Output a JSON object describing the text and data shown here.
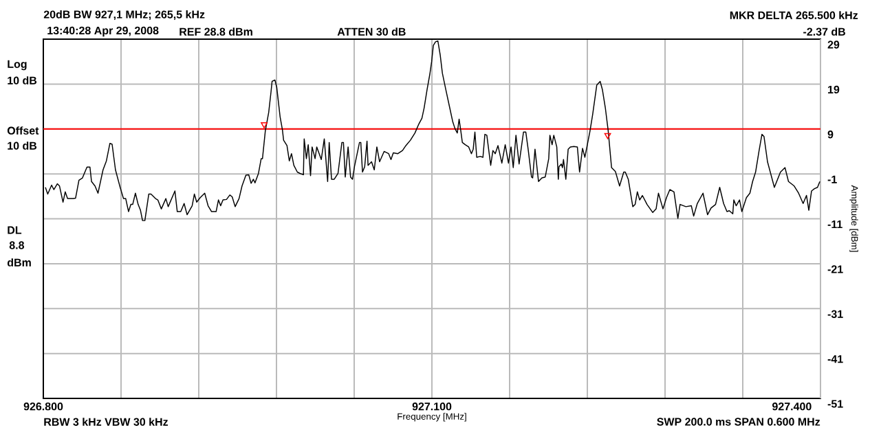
{
  "chart_data": {
    "type": "line",
    "title": "20dB BW 927,1 MHz; 265,5 kHz",
    "xlabel": "Frequency [MHz]",
    "ylabel": "Amplitude [dBm]",
    "annotations": [
      "13:40:28 Apr 29, 2008",
      "REF 28.8 dBm",
      "ATTEN 30 dB",
      "MKR DELTA 265.500 kHz",
      "-2.37 dB",
      "Log",
      "10 dB",
      "Offset",
      "10 dB",
      "DL",
      "8.8",
      "dBm",
      "RBW 3 kHz  VBW 30 kHz",
      "SWP 200.0 ms  SPAN 0.600 MHz"
    ],
    "xlim": [
      926.8,
      927.4
    ],
    "ylim": [
      -51.2,
      28.8
    ],
    "xticks": [
      {
        "value": 926.8,
        "label": "926.800"
      },
      {
        "value": 926.86,
        "label": null
      },
      {
        "value": 926.92,
        "label": null
      },
      {
        "value": 926.98,
        "label": null
      },
      {
        "value": 927.04,
        "label": null
      },
      {
        "value": 927.1,
        "label": "927.100"
      },
      {
        "value": 927.16,
        "label": null
      },
      {
        "value": 927.22,
        "label": null
      },
      {
        "value": 927.28,
        "label": null
      },
      {
        "value": 927.34,
        "label": null
      },
      {
        "value": 927.4,
        "label": "927.400"
      }
    ],
    "yticks": [
      {
        "value": 28.8,
        "label": "29"
      },
      {
        "value": 18.8,
        "label": "19"
      },
      {
        "value": 8.8,
        "label": "9"
      },
      {
        "value": -1.2,
        "label": "-1"
      },
      {
        "value": -11.2,
        "label": "-11"
      },
      {
        "value": -21.2,
        "label": "-21"
      },
      {
        "value": -31.2,
        "label": "-31"
      },
      {
        "value": -41.2,
        "label": "-41"
      },
      {
        "value": -51.2,
        "label": "-51"
      }
    ],
    "grid": true,
    "ref_lines": [
      {
        "axis": "y",
        "value": 8.8,
        "color": "#ff0000"
      }
    ],
    "series": [
      {
        "color": "#000000",
        "x": [
          926.8016,
          926.8034,
          926.8064,
          926.8081,
          926.8108,
          926.8125,
          926.8152,
          926.8169,
          926.8187,
          926.8231,
          926.8249,
          926.8275,
          926.8302,
          926.8337,
          926.836,
          926.8372,
          926.8399,
          926.8422,
          926.8461,
          926.8487,
          926.8514,
          926.8531,
          926.8557,
          926.8593,
          926.8619,
          926.8636,
          926.8658,
          926.8676,
          926.869,
          926.8711,
          926.8732,
          926.875,
          926.8766,
          926.8784,
          926.8814,
          926.8831,
          926.8866,
          926.8884,
          926.8911,
          926.8946,
          926.8964,
          926.9016,
          926.9034,
          926.9061,
          926.9087,
          926.911,
          926.9149,
          926.9166,
          926.9184,
          926.9211,
          926.9246,
          926.9272,
          926.9299,
          926.9334,
          926.9352,
          926.9369,
          926.9387,
          926.9414,
          926.944,
          926.9458,
          926.9481,
          926.9511,
          926.9534,
          926.9564,
          926.9586,
          926.9604,
          926.9622,
          926.9634,
          926.9661,
          926.9682,
          926.9692,
          926.9714,
          926.974,
          926.9758,
          926.9766,
          926.9788,
          926.9802,
          926.9828,
          926.9846,
          926.9855,
          926.9881,
          926.9899,
          926.9916,
          926.9934,
          926.9961,
          926.9982,
          927.0008,
          927.0014,
          927.0031,
          927.0045,
          927.0063,
          927.0075,
          927.0098,
          927.0111,
          927.0146,
          927.0169,
          927.0195,
          927.0207,
          927.0225,
          927.0246,
          927.0275,
          927.0305,
          927.0317,
          927.0331,
          927.0353,
          927.0372,
          927.0387,
          927.0402,
          927.0441,
          927.0451,
          927.0464,
          927.0481,
          927.0499,
          927.0507,
          927.0534,
          927.0555,
          927.0575,
          927.0596,
          927.0631,
          927.0666,
          927.0684,
          927.0702,
          927.0737,
          927.0773,
          927.0799,
          927.0834,
          927.0869,
          927.0899,
          927.0923,
          927.094,
          927.0963,
          927.0984,
          927.0998,
          927.1011,
          927.1028,
          927.1046,
          927.1064,
          927.1081,
          927.1107,
          927.1134,
          927.1161,
          927.1178,
          927.1196,
          927.121,
          927.1223,
          927.1235,
          927.1257,
          927.1284,
          927.1305,
          927.1319,
          927.1332,
          927.1346,
          927.1373,
          927.1394,
          927.1409,
          927.1424,
          927.1454,
          927.1471,
          927.1489,
          927.151,
          927.154,
          927.1566,
          927.1591,
          927.1611,
          927.1628,
          927.1649,
          927.1673,
          927.1707,
          927.1725,
          927.1743,
          927.1769,
          927.1778,
          927.1796,
          927.1823,
          927.1849,
          927.1875,
          927.1902,
          927.1911,
          927.1928,
          927.1941,
          927.1964,
          927.1976,
          927.1981,
          927.1999,
          927.2008,
          927.2016,
          927.2034,
          927.2052,
          927.2069,
          927.2096,
          927.2123,
          927.214,
          927.2163,
          927.2181,
          927.2219,
          927.2241,
          927.2273,
          927.2299,
          927.2316,
          927.2339,
          927.2361,
          927.2387,
          927.2417,
          927.2449,
          927.2481,
          927.2493,
          927.2516,
          927.2551,
          927.2569,
          927.2586,
          927.2604,
          927.2625,
          927.2661,
          927.2705,
          927.2731,
          927.2749,
          927.2784,
          927.2811,
          927.2837,
          927.2869,
          927.2899,
          927.2916,
          927.2961,
          927.3003,
          927.3021,
          927.3049,
          927.3093,
          927.3128,
          927.3155,
          927.319,
          927.3222,
          927.3252,
          927.3278,
          927.3296,
          927.3323,
          927.3331,
          927.3349,
          927.3375,
          927.3393,
          927.3428,
          927.3455,
          927.3476,
          927.3499,
          927.3525,
          927.3548,
          927.3564,
          927.3591,
          927.3644,
          927.3691,
          927.3726,
          927.3753,
          927.3797,
          927.3831,
          927.3866,
          927.3892,
          927.391,
          927.3931,
          927.3954,
          927.3977,
          927.3995
        ],
        "values": [
          -4.2,
          -5.7,
          -3.7,
          -4.7,
          -3.4,
          -3.9,
          -7.5,
          -5.2,
          -6.7,
          -6.7,
          -6.6,
          -2.6,
          -2.1,
          0.3,
          0.3,
          -2.9,
          -3.9,
          -5.5,
          -0.3,
          1.7,
          5.6,
          5.4,
          -0.3,
          -4.2,
          -6.7,
          -6.7,
          -9.6,
          -8.0,
          -8.0,
          -5.5,
          -8.0,
          -9.3,
          -11.6,
          -11.6,
          -5.7,
          -5.7,
          -6.7,
          -7.0,
          -9.0,
          -6.7,
          -8.5,
          -5.0,
          -9.6,
          -9.6,
          -7.8,
          -10.3,
          -8.3,
          -5.7,
          -7.5,
          -6.5,
          -5.5,
          -8.3,
          -9.6,
          -9.6,
          -7.0,
          -8.3,
          -7.0,
          -6.9,
          -5.9,
          -6.3,
          -8.5,
          -6.7,
          -3.9,
          -1.5,
          -1.4,
          -3.3,
          -2.4,
          -3.2,
          -1.1,
          2.2,
          2.2,
          8.4,
          12.5,
          17.1,
          19.4,
          19.7,
          18.1,
          11.5,
          8.6,
          6.3,
          5.1,
          1.7,
          3.3,
          0.7,
          -0.8,
          -1.1,
          -1.4,
          6.6,
          2.2,
          5.3,
          -1.6,
          4.8,
          2.2,
          4.8,
          2.0,
          6.6,
          -2.9,
          5.8,
          -2.4,
          -2.4,
          -1.1,
          5.8,
          5.8,
          -1.9,
          4.8,
          -1.9,
          -2.4,
          0.4,
          5.8,
          5.8,
          -0.8,
          0.4,
          6.1,
          0.7,
          1.5,
          -0.3,
          4.8,
          1.5,
          3.8,
          3.3,
          2.0,
          3.5,
          3.3,
          4.0,
          5.1,
          6.3,
          7.9,
          9.9,
          11.2,
          13.5,
          17.6,
          21.0,
          23.8,
          27.4,
          28.2,
          28.4,
          25.3,
          21.2,
          17.6,
          14.0,
          10.4,
          8.9,
          7.9,
          11.0,
          8.4,
          5.8,
          5.3,
          4.8,
          3.3,
          4.3,
          8.1,
          2.5,
          2.7,
          2.5,
          7.6,
          7.4,
          0.7,
          4.0,
          3.3,
          5.1,
          1.2,
          5.3,
          1.2,
          4.8,
          0.2,
          7.4,
          1.0,
          8.1,
          8.1,
          4.3,
          -1.9,
          -2.1,
          4.3,
          -2.9,
          -2.1,
          -1.9,
          2.2,
          7.4,
          5.3,
          7.4,
          4.8,
          -2.4,
          0.4,
          1.0,
          0.2,
          2.0,
          -2.4,
          4.3,
          4.8,
          4.9,
          4.8,
          -0.8,
          4.5,
          2.5,
          8.1,
          12.0,
          18.6,
          19.4,
          17.6,
          13.5,
          8.4,
          0.2,
          -0.7,
          -3.9,
          -0.8,
          -0.8,
          -2.4,
          -8.5,
          -8.0,
          -5.2,
          -7.0,
          -6.0,
          -8.0,
          -9.8,
          -9.0,
          -5.5,
          -9.0,
          -6.5,
          -4.7,
          -5.2,
          -11.1,
          -8.0,
          -8.5,
          -8.3,
          -10.6,
          -7.8,
          -5.5,
          -10.3,
          -8.8,
          -8.0,
          -4.2,
          -7.8,
          -9.6,
          -9.4,
          -10.1,
          -7.0,
          -8.3,
          -7.0,
          -9.6,
          -6.5,
          -5.5,
          -2.9,
          -0.8,
          3.8,
          7.6,
          7.1,
          1.5,
          -4.2,
          -0.8,
          0.2,
          -2.9,
          -3.9,
          -5.5,
          -7.8,
          -6.0,
          -9.3,
          -5.0,
          -4.5,
          -4.2,
          -2.9
        ]
      },
      {
        "type": "scatter",
        "marker": "triangle",
        "color": "#ff0000",
        "x": [
          926.9705,
          927.2357
        ],
        "values": [
          9.8,
          7.4
        ]
      }
    ]
  }
}
